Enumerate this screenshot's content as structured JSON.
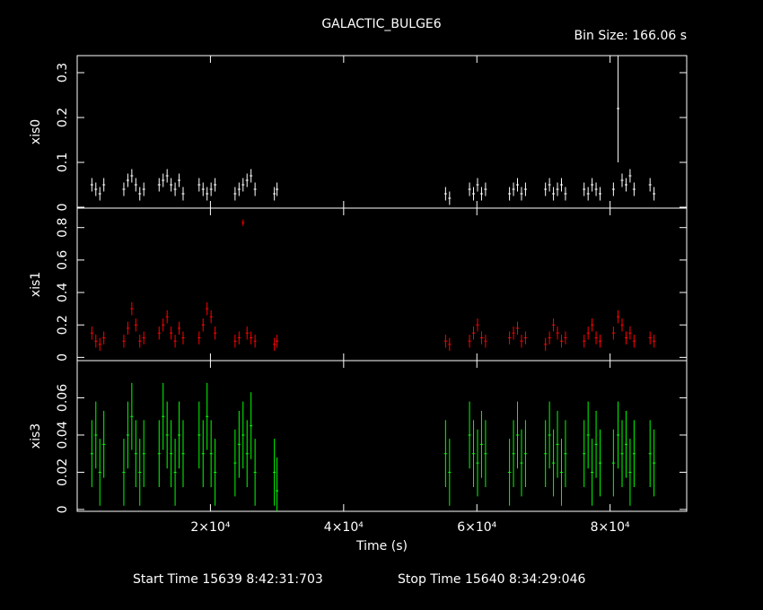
{
  "header": {
    "title": "GALACTIC_BULGE6",
    "bin_size": "Bin Size: 166.06 s"
  },
  "footer": {
    "start": "Start Time 15639  8:42:31:703",
    "stop": "Stop Time 15640  8:34:29:046"
  },
  "chart_data": [
    {
      "type": "errorbar",
      "ylabel": "xis0",
      "color": "#ffffff",
      "x": [
        2200,
        2800,
        3400,
        4000,
        7000,
        7600,
        8200,
        8800,
        9400,
        10000,
        12300,
        12900,
        13500,
        14100,
        14700,
        15300,
        15900,
        18300,
        18900,
        19500,
        20100,
        20700,
        23700,
        24300,
        24900,
        25500,
        26100,
        26700,
        29600,
        30000,
        55300,
        55900,
        58900,
        59500,
        60100,
        60700,
        61300,
        64900,
        65500,
        66100,
        66700,
        67300,
        70300,
        70900,
        71500,
        72100,
        72700,
        73300,
        76100,
        76700,
        77300,
        77900,
        78500,
        80500,
        81200,
        81800,
        82400,
        83000,
        83600,
        86000,
        86600
      ],
      "values": [
        0.05,
        0.04,
        0.03,
        0.05,
        0.04,
        0.06,
        0.07,
        0.05,
        0.03,
        0.04,
        0.05,
        0.06,
        0.07,
        0.05,
        0.04,
        0.06,
        0.03,
        0.05,
        0.04,
        0.03,
        0.04,
        0.05,
        0.03,
        0.04,
        0.05,
        0.06,
        0.07,
        0.04,
        0.03,
        0.04,
        0.03,
        0.02,
        0.04,
        0.03,
        0.05,
        0.03,
        0.04,
        0.03,
        0.04,
        0.05,
        0.03,
        0.04,
        0.04,
        0.05,
        0.03,
        0.04,
        0.05,
        0.03,
        0.04,
        0.03,
        0.05,
        0.04,
        0.03,
        0.04,
        0.22,
        0.06,
        0.05,
        0.07,
        0.04,
        0.05,
        0.03
      ],
      "errors": [
        0.015,
        0.015,
        0.015,
        0.015,
        0.015,
        0.015,
        0.015,
        0.015,
        0.015,
        0.015,
        0.015,
        0.015,
        0.015,
        0.015,
        0.015,
        0.015,
        0.015,
        0.015,
        0.015,
        0.015,
        0.015,
        0.015,
        0.015,
        0.015,
        0.015,
        0.015,
        0.015,
        0.015,
        0.015,
        0.015,
        0.015,
        0.015,
        0.015,
        0.015,
        0.015,
        0.015,
        0.015,
        0.015,
        0.015,
        0.015,
        0.015,
        0.015,
        0.015,
        0.015,
        0.015,
        0.015,
        0.015,
        0.015,
        0.015,
        0.015,
        0.015,
        0.015,
        0.015,
        0.015,
        0.12,
        0.015,
        0.015,
        0.015,
        0.015,
        0.015,
        0.015
      ],
      "ylim": [
        -0.002,
        0.338
      ],
      "yticks": [
        0,
        0.1,
        0.2,
        0.3
      ]
    },
    {
      "type": "errorbar",
      "ylabel": "xis1",
      "color": "#ff0000",
      "x": [
        2200,
        2800,
        3400,
        4000,
        7000,
        7600,
        8200,
        8800,
        9400,
        10000,
        12300,
        12900,
        13500,
        14100,
        14700,
        15300,
        15900,
        18300,
        18900,
        19500,
        20100,
        20700,
        23700,
        24300,
        24900,
        25500,
        26100,
        26700,
        29600,
        30000,
        55300,
        55900,
        58900,
        59500,
        60100,
        60700,
        61300,
        64900,
        65500,
        66100,
        66700,
        67300,
        70300,
        70900,
        71500,
        72100,
        72700,
        73300,
        76100,
        76700,
        77300,
        77900,
        78500,
        80500,
        81200,
        81800,
        82400,
        83000,
        83600,
        86000,
        86600
      ],
      "values": [
        0.15,
        0.1,
        0.08,
        0.12,
        0.1,
        0.18,
        0.3,
        0.2,
        0.1,
        0.12,
        0.15,
        0.2,
        0.25,
        0.15,
        0.1,
        0.18,
        0.12,
        0.12,
        0.2,
        0.3,
        0.25,
        0.15,
        0.1,
        0.12,
        0.83,
        0.15,
        0.12,
        0.1,
        0.08,
        0.1,
        0.1,
        0.08,
        0.1,
        0.15,
        0.2,
        0.12,
        0.1,
        0.12,
        0.15,
        0.18,
        0.1,
        0.12,
        0.08,
        0.12,
        0.2,
        0.15,
        0.1,
        0.12,
        0.1,
        0.15,
        0.2,
        0.12,
        0.1,
        0.15,
        0.25,
        0.2,
        0.12,
        0.15,
        0.1,
        0.12,
        0.1
      ],
      "errors": [
        0.04,
        0.04,
        0.04,
        0.04,
        0.04,
        0.04,
        0.04,
        0.04,
        0.04,
        0.04,
        0.04,
        0.04,
        0.04,
        0.04,
        0.04,
        0.04,
        0.04,
        0.04,
        0.04,
        0.04,
        0.04,
        0.04,
        0.04,
        0.04,
        0.02,
        0.04,
        0.04,
        0.04,
        0.04,
        0.04,
        0.04,
        0.04,
        0.04,
        0.04,
        0.04,
        0.04,
        0.04,
        0.04,
        0.04,
        0.04,
        0.04,
        0.04,
        0.04,
        0.04,
        0.04,
        0.04,
        0.04,
        0.04,
        0.04,
        0.04,
        0.04,
        0.04,
        0.04,
        0.04,
        0.04,
        0.04,
        0.04,
        0.04,
        0.04,
        0.04,
        0.04
      ],
      "ylim": [
        -0.02,
        0.92
      ],
      "yticks": [
        0,
        0.2,
        0.4,
        0.6,
        0.8
      ]
    },
    {
      "type": "errorbar",
      "ylabel": "xis3",
      "color": "#00ff00",
      "xlabel": "Time (s)",
      "xlim": [
        0,
        91500
      ],
      "xticks": [
        {
          "value": 20000,
          "label": "2×10⁴"
        },
        {
          "value": 40000,
          "label": "4×10⁴"
        },
        {
          "value": 60000,
          "label": "6×10⁴"
        },
        {
          "value": 80000,
          "label": "8×10⁴"
        }
      ],
      "x": [
        2200,
        2800,
        3400,
        4000,
        7000,
        7600,
        8200,
        8800,
        9400,
        10000,
        12300,
        12900,
        13500,
        14100,
        14700,
        15300,
        15900,
        18300,
        18900,
        19500,
        20100,
        20700,
        23700,
        24300,
        24900,
        25500,
        26100,
        26700,
        29600,
        30000,
        55300,
        55900,
        58900,
        59500,
        60100,
        60700,
        61300,
        64900,
        65500,
        66100,
        66700,
        67300,
        70300,
        70900,
        71500,
        72100,
        72700,
        73300,
        76100,
        76700,
        77300,
        77900,
        78500,
        80500,
        81200,
        81800,
        82400,
        83000,
        83600,
        86000,
        86600
      ],
      "values": [
        0.03,
        0.04,
        0.02,
        0.035,
        0.02,
        0.04,
        0.05,
        0.03,
        0.02,
        0.03,
        0.03,
        0.05,
        0.04,
        0.03,
        0.02,
        0.04,
        0.03,
        0.04,
        0.03,
        0.05,
        0.03,
        0.02,
        0.025,
        0.035,
        0.04,
        0.03,
        0.045,
        0.02,
        0.02,
        0.01,
        0.03,
        0.02,
        0.04,
        0.03,
        0.025,
        0.035,
        0.03,
        0.02,
        0.03,
        0.04,
        0.025,
        0.03,
        0.03,
        0.04,
        0.025,
        0.035,
        0.02,
        0.03,
        0.03,
        0.04,
        0.02,
        0.035,
        0.025,
        0.025,
        0.04,
        0.03,
        0.035,
        0.02,
        0.03,
        0.03,
        0.025
      ],
      "errors": [
        0.018,
        0.018,
        0.018,
        0.018,
        0.018,
        0.018,
        0.018,
        0.018,
        0.018,
        0.018,
        0.018,
        0.018,
        0.018,
        0.018,
        0.018,
        0.018,
        0.018,
        0.018,
        0.018,
        0.018,
        0.018,
        0.018,
        0.018,
        0.018,
        0.018,
        0.018,
        0.018,
        0.018,
        0.018,
        0.018,
        0.018,
        0.018,
        0.018,
        0.018,
        0.018,
        0.018,
        0.018,
        0.018,
        0.018,
        0.018,
        0.018,
        0.018,
        0.018,
        0.018,
        0.018,
        0.018,
        0.018,
        0.018,
        0.018,
        0.018,
        0.018,
        0.018,
        0.018,
        0.018,
        0.018,
        0.018,
        0.018,
        0.018,
        0.018,
        0.018,
        0.018
      ],
      "ylim": [
        -0.001,
        0.08
      ],
      "yticks": [
        0,
        0.02,
        0.04,
        0.06
      ]
    }
  ]
}
